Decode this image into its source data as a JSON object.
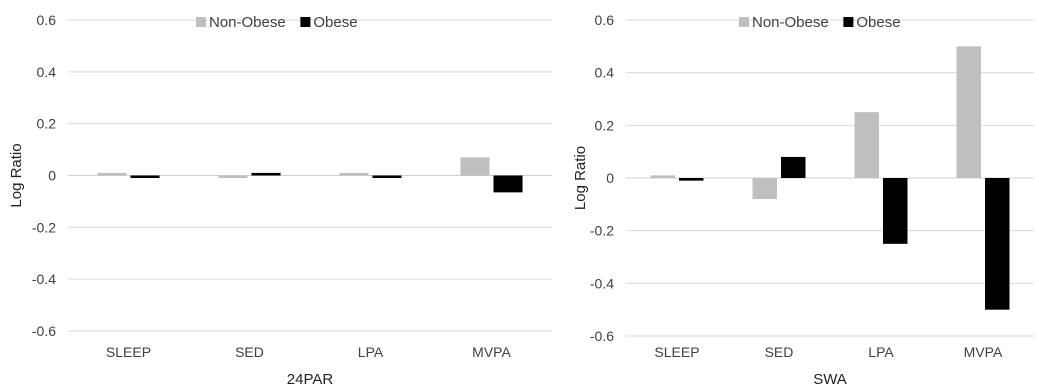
{
  "chart_data": [
    {
      "type": "bar",
      "title": "",
      "xlabel": "24PAR",
      "ylabel": "Log Ratio",
      "categories": [
        "SLEEP",
        "SED",
        "LPA",
        "MVPA"
      ],
      "ylim": [
        -0.6,
        0.6
      ],
      "yticks": [
        -0.6,
        -0.4,
        -0.2,
        0,
        0.2,
        0.4,
        0.6
      ],
      "ytick_labels": [
        "-0.6",
        "-0.4",
        "-0.2",
        "0",
        "0.2",
        "0.4",
        "0.6"
      ],
      "grid": true,
      "legend_position": "top-center",
      "series": [
        {
          "name": "Non-Obese",
          "color": "#bfbfbf",
          "values": [
            0.01,
            -0.005,
            0.01,
            0.07
          ]
        },
        {
          "name": "Obese",
          "color": "#000000",
          "values": [
            -0.005,
            0.01,
            -0.005,
            -0.065
          ]
        }
      ]
    },
    {
      "type": "bar",
      "title": "",
      "xlabel": "SWA",
      "ylabel": "Log Ratio",
      "categories": [
        "SLEEP",
        "SED",
        "LPA",
        "MVPA"
      ],
      "ylim": [
        -0.6,
        0.6
      ],
      "yticks": [
        -0.6,
        -0.4,
        -0.2,
        0,
        0.2,
        0.4,
        0.6
      ],
      "ytick_labels": [
        "-0.6",
        "-0.4",
        "-0.2",
        "0",
        "0.2",
        "0.4",
        "0.6"
      ],
      "grid": true,
      "legend_position": "top-center",
      "series": [
        {
          "name": "Non-Obese",
          "color": "#bfbfbf",
          "values": [
            0.01,
            -0.08,
            0.25,
            0.5
          ]
        },
        {
          "name": "Obese",
          "color": "#000000",
          "values": [
            -0.01,
            0.08,
            -0.25,
            -0.5
          ]
        }
      ]
    }
  ]
}
